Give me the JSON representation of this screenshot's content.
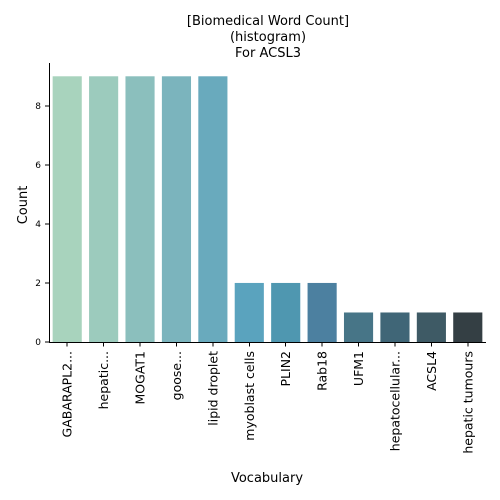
{
  "chart_data": {
    "type": "bar",
    "title_lines": [
      "[Biomedical Word Count]",
      "(histogram)",
      "For ACSL3"
    ],
    "xlabel": "Vocabulary",
    "ylabel": "Count",
    "categories": [
      "GABARAPL2...",
      "hepatic...",
      "MOGAT1",
      "goose...",
      "lipid droplet",
      "myoblast cells",
      "PLIN2",
      "Rab18",
      "UFM1",
      "hepatocellular...",
      "ACSL4",
      "hepatic tumours"
    ],
    "values": [
      9,
      9,
      9,
      9,
      9,
      2,
      2,
      2,
      1,
      1,
      1,
      1
    ],
    "colors": [
      "#a8d3bd",
      "#9ccbbd",
      "#8bbfbd",
      "#7bb4bd",
      "#69aabd",
      "#5aa3be",
      "#4f97b0",
      "#4c80a0",
      "#477587",
      "#406677",
      "#3e5a65",
      "#343f44"
    ],
    "ylim": [
      0,
      9.45
    ],
    "yticks": [
      0,
      2,
      4,
      6,
      8
    ],
    "grid": false,
    "legend": "none"
  }
}
